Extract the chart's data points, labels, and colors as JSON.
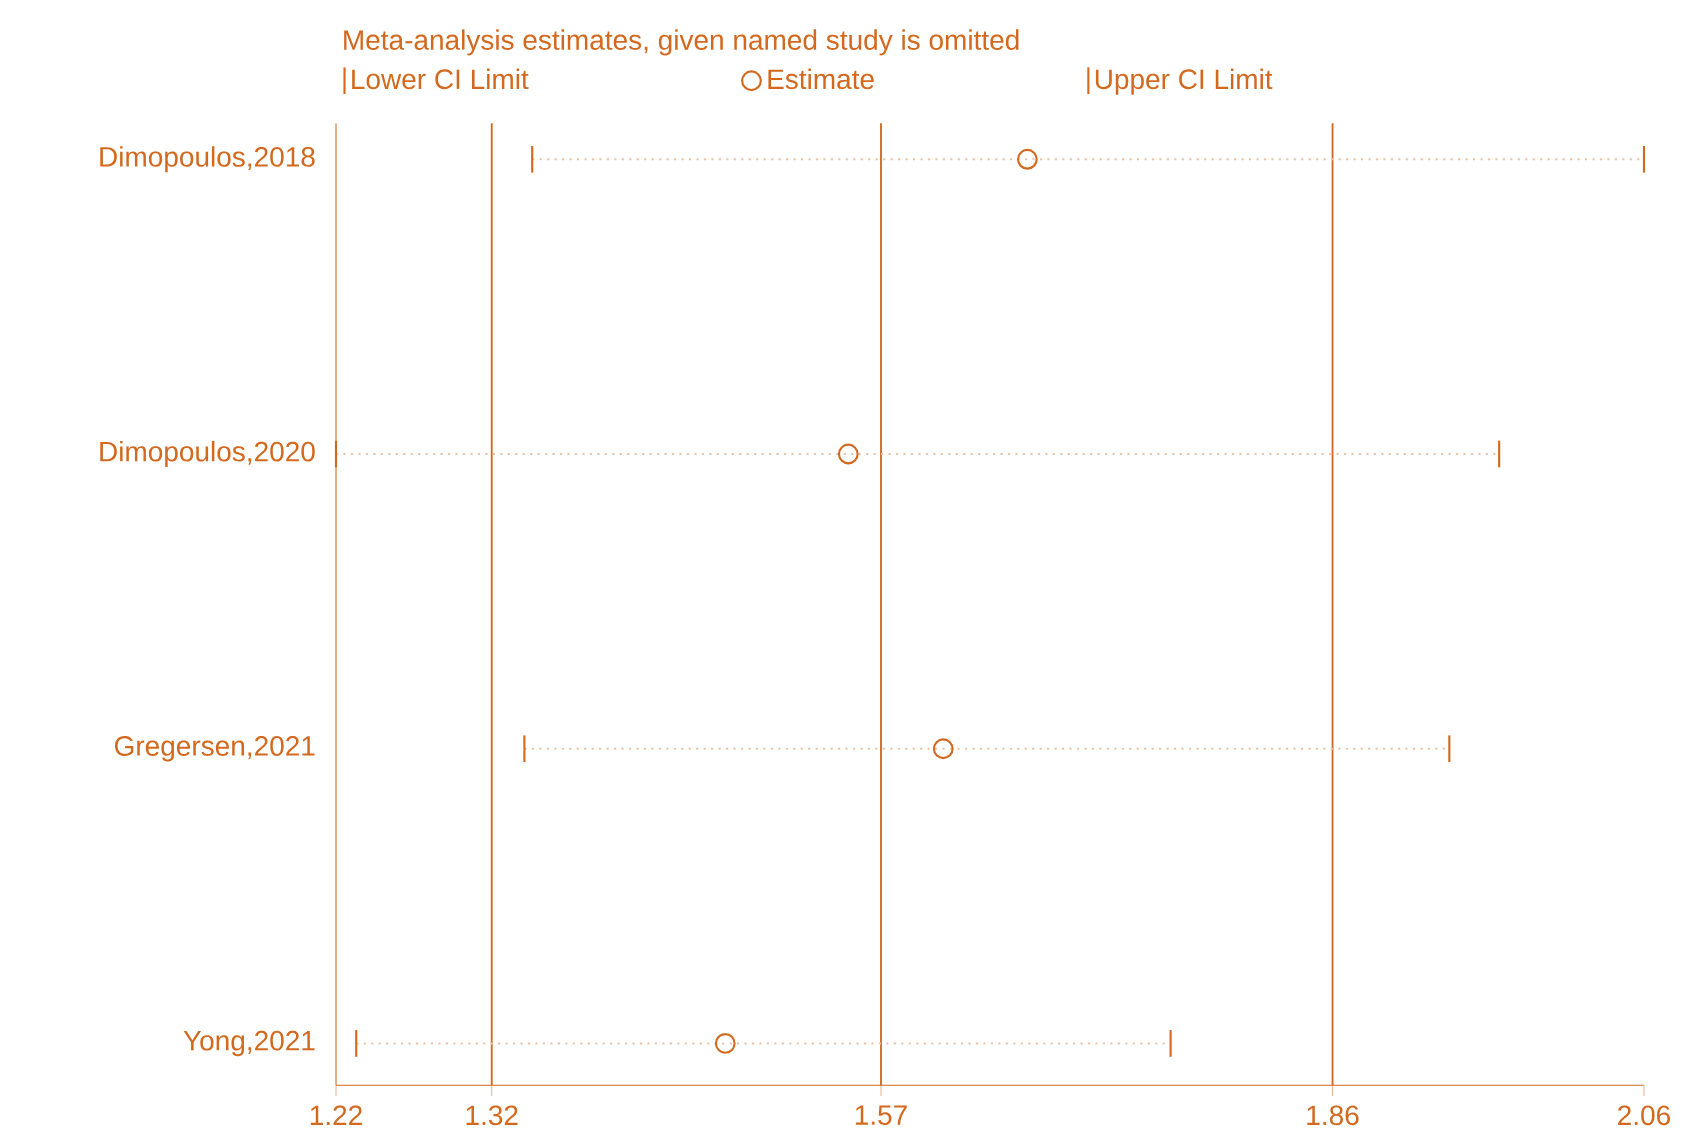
{
  "chart_data": {
    "type": "scatter",
    "orientation": "horizontal",
    "legend_title": "Meta-analysis estimates, given named study is omitted",
    "categories": [
      "Dimopoulos,2018",
      "Dimopoulos,2020",
      "Gregersen,2021",
      "Yong,2021"
    ],
    "series": [
      {
        "name": "Estimate",
        "color": "#d2691e",
        "marker": "circle",
        "values": [
          1.664,
          1.549,
          1.61,
          1.47
        ],
        "errors": [
          [
            1.346,
            2.06
          ],
          [
            1.22,
            1.967
          ],
          [
            1.341,
            1.935
          ],
          [
            1.233,
            1.756
          ]
        ]
      }
    ],
    "annotations": [
      "Lower CI Limit",
      "Upper CI Limit"
    ],
    "xlim": [
      1.22,
      2.06
    ],
    "xticks": [
      1.22,
      1.32,
      1.57,
      1.86,
      2.06
    ],
    "ref_lines": [
      {
        "axis": "x",
        "value": 1.32,
        "color": "#d2691e"
      },
      {
        "axis": "x",
        "value": 1.57,
        "color": "#d2691e"
      },
      {
        "axis": "x",
        "value": 1.86,
        "color": "#d2691e"
      }
    ],
    "legend": "top"
  }
}
